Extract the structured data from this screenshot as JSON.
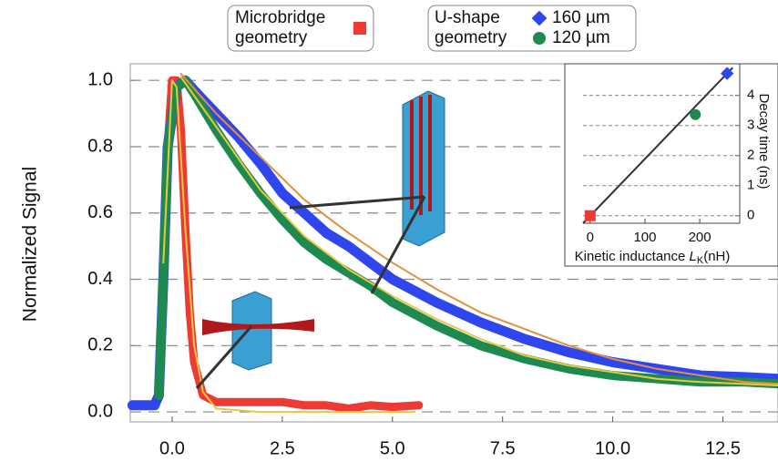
{
  "chart_data": [
    {
      "type": "line",
      "y_label": "Normalized Signal",
      "xlim": [
        -0.95,
        13.75
      ],
      "ylim": [
        -0.03,
        1.05
      ],
      "xticks": [
        {
          "value": 0,
          "label": "0.0"
        },
        2.5,
        {
          "value": 5,
          "label": "5.0"
        },
        7.5,
        {
          "value": 10,
          "label": "10.0"
        },
        12.5
      ],
      "yticks": [
        {
          "value": 0,
          "label": "0.0"
        },
        0.2,
        0.4,
        0.6,
        0.8,
        {
          "value": 1,
          "label": "1.0"
        }
      ],
      "grid": true,
      "legend_group": [
        "U-shape",
        "geometry"
      ],
      "series": [
        {
          "name": [
            "Microbridge",
            "geometry"
          ],
          "color": "#ee3a35",
          "marker": "square",
          "width": 9,
          "x": [
            -0.9,
            -0.4,
            -0.3,
            -0.2,
            -0.1,
            0.0,
            0.1,
            0.2,
            0.3,
            0.4,
            0.5,
            0.7,
            1.0,
            1.5,
            2.0,
            2.5,
            3.0,
            3.5,
            4.0,
            4.5,
            5.0,
            5.6
          ],
          "values": [
            0.02,
            0.02,
            0.05,
            0.4,
            0.8,
            1.0,
            1.0,
            0.85,
            0.55,
            0.3,
            0.15,
            0.05,
            0.03,
            0.03,
            0.03,
            0.03,
            0.02,
            0.02,
            0.01,
            0.02,
            0.015,
            0.02
          ]
        },
        {
          "name": "160 µm",
          "color": "#2f45ee",
          "marker": "diamond",
          "width": 11,
          "x": [
            -0.9,
            -0.4,
            -0.3,
            -0.2,
            -0.1,
            0.1,
            0.3,
            0.5,
            1.0,
            1.5,
            2.0,
            2.5,
            3.0,
            3.5,
            4.0,
            4.5,
            5.0,
            6.0,
            7.0,
            8.0,
            9.0,
            10.0,
            11.0,
            12.0,
            13.0,
            13.75
          ],
          "values": [
            0.02,
            0.02,
            0.05,
            0.4,
            0.8,
            0.98,
            1.0,
            0.97,
            0.9,
            0.83,
            0.75,
            0.66,
            0.6,
            0.54,
            0.5,
            0.45,
            0.4,
            0.33,
            0.27,
            0.22,
            0.18,
            0.15,
            0.13,
            0.11,
            0.105,
            0.1
          ]
        },
        {
          "name": "120 µm",
          "color": "#1f8a50",
          "marker": "circle",
          "width": 10,
          "x": [
            -0.3,
            -0.2,
            -0.1,
            0.1,
            0.3,
            0.5,
            1.0,
            1.5,
            2.0,
            2.5,
            3.0,
            3.5,
            4.0,
            4.5,
            5.0,
            6.0,
            7.0,
            8.0,
            9.0,
            10.0,
            11.0,
            12.0,
            13.0,
            13.75
          ],
          "values": [
            0.05,
            0.4,
            0.8,
            0.98,
            1.0,
            0.96,
            0.85,
            0.75,
            0.66,
            0.58,
            0.51,
            0.46,
            0.42,
            0.38,
            0.33,
            0.26,
            0.2,
            0.16,
            0.13,
            0.11,
            0.1,
            0.09,
            0.09,
            0.085
          ]
        },
        {
          "color": "#e8c840",
          "width": 2,
          "x": [
            -0.2,
            0.0,
            0.1,
            0.3,
            0.5,
            0.7,
            1.0,
            2.0,
            5.5
          ],
          "values": [
            0.45,
            1.0,
            0.98,
            0.55,
            0.2,
            0.06,
            0.01,
            0.0,
            0.0
          ]
        },
        {
          "color": "#e09040",
          "width": 2,
          "x": [
            0.2,
            1,
            2,
            3,
            4,
            5,
            6,
            7,
            8,
            9,
            10,
            11,
            12,
            13,
            13.75
          ],
          "values": [
            1.02,
            0.9,
            0.77,
            0.64,
            0.54,
            0.45,
            0.37,
            0.3,
            0.25,
            0.2,
            0.16,
            0.13,
            0.11,
            0.09,
            0.085
          ]
        },
        {
          "color": "#e8c840",
          "width": 2,
          "x": [
            0.2,
            1,
            2,
            3,
            4,
            5,
            6,
            7,
            8,
            9,
            10,
            11,
            12,
            13.75
          ],
          "values": [
            1.01,
            0.86,
            0.67,
            0.53,
            0.43,
            0.35,
            0.28,
            0.22,
            0.17,
            0.14,
            0.12,
            0.1,
            0.09,
            0.08
          ]
        }
      ]
    },
    {
      "type": "scatter",
      "x_label": "Kinetic inductance ",
      "x_label_symbol": "L",
      "x_label_sub": "K",
      "x_label_unit": "(nH)",
      "y_label": "Decay time (ns)",
      "xlim": [
        -13,
        273
      ],
      "ylim": [
        -0.25,
        5.05
      ],
      "xticks": [
        0,
        100,
        200
      ],
      "yticks": [
        0,
        1,
        2,
        3,
        4
      ],
      "grid": true,
      "series": [
        {
          "color": "#333333",
          "x": [
            -13,
            260
          ],
          "values": [
            -0.25,
            4.92
          ]
        },
        {
          "color": "#ee3a35",
          "marker": "square",
          "x": [
            0
          ],
          "values": [
            0
          ]
        },
        {
          "color": "#1f8a50",
          "marker": "circle",
          "x": [
            192
          ],
          "values": [
            3.36
          ]
        },
        {
          "color": "#2f45ee",
          "marker": "diamond",
          "x": [
            250
          ],
          "values": [
            4.73
          ]
        }
      ]
    }
  ]
}
